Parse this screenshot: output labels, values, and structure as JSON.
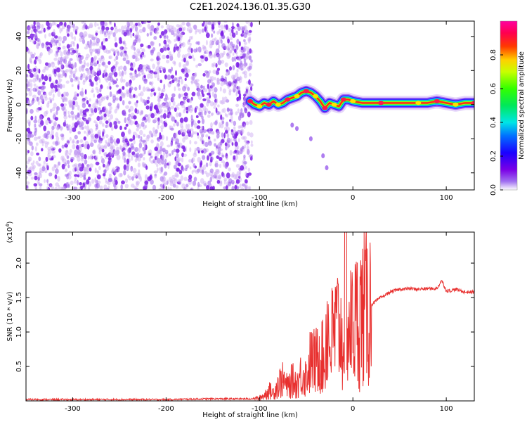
{
  "title": "C2E1.2024.136.01.35.G30",
  "colors": {
    "snr_line": "#e8302f",
    "scatter_ring": "#7d1ee6",
    "scatter_light": "#c9a6f2"
  },
  "chart_data": [
    {
      "type": "heatmap",
      "xlabel": "Height of straight line (km)",
      "ylabel": "Frequency (Hz)",
      "xlim": [
        -350,
        130
      ],
      "ylim": [
        -50,
        49
      ],
      "xticks": [
        -300,
        -200,
        -100,
        0,
        100
      ],
      "yticks": [
        -40,
        -20,
        0,
        20,
        40
      ],
      "grid": false,
      "colorbar": {
        "label": "Normalized spectral amplitude",
        "range": [
          0,
          1
        ],
        "ticks": [
          "0.0",
          "0.2",
          "0.4",
          "0.6",
          "0.8"
        ],
        "colormap": "rainbow (purple → blue → cyan → green → yellow → red → magenta)"
      },
      "noise_region": {
        "x_range": [
          -350,
          -108
        ],
        "freq_range": [
          -50,
          49
        ],
        "amplitude": 0.05
      },
      "signal_trace": {
        "description": "Strong narrow-band carrier trace near 0 Hz",
        "points": [
          [
            -110,
            2
          ],
          [
            -105,
            0
          ],
          [
            -100,
            -1
          ],
          [
            -95,
            1
          ],
          [
            -90,
            0
          ],
          [
            -85,
            2
          ],
          [
            -80,
            0
          ],
          [
            -75,
            1
          ],
          [
            -70,
            3
          ],
          [
            -65,
            4
          ],
          [
            -60,
            5
          ],
          [
            -55,
            7
          ],
          [
            -50,
            8
          ],
          [
            -45,
            7
          ],
          [
            -40,
            5
          ],
          [
            -35,
            2
          ],
          [
            -30,
            -2
          ],
          [
            -25,
            1
          ],
          [
            -20,
            0
          ],
          [
            -15,
            -1
          ],
          [
            -10,
            3
          ],
          [
            -5,
            3
          ],
          [
            0,
            2
          ],
          [
            10,
            1
          ],
          [
            30,
            1
          ],
          [
            50,
            1
          ],
          [
            70,
            1
          ],
          [
            80,
            1
          ],
          [
            90,
            2
          ],
          [
            100,
            1
          ],
          [
            110,
            0
          ],
          [
            120,
            1
          ],
          [
            130,
            1
          ]
        ]
      },
      "secondary_trace": {
        "description": "Faint diagonal echo descending below the carrier",
        "points": [
          [
            -65,
            -12
          ],
          [
            -60,
            -14
          ],
          [
            -45,
            -20
          ],
          [
            -32,
            -30
          ],
          [
            -28,
            -37
          ]
        ]
      }
    },
    {
      "type": "line",
      "xlabel": "Height of straight line (km)",
      "ylabel": "SNR (10 * v/v)",
      "y_multiplier": "(x10",
      "y_multiplier_exp": "4",
      "y_multiplier_close": ")",
      "xlim": [
        -350,
        130
      ],
      "ylim": [
        0,
        2.45
      ],
      "xticks": [
        -300,
        -200,
        -100,
        0,
        100
      ],
      "yticks": [
        "0.5",
        "1.0",
        "1.5",
        "2.0"
      ],
      "grid": false,
      "series": [
        {
          "color": "#e8302f",
          "x": [
            -350,
            -300,
            -250,
            -200,
            -150,
            -110,
            -100,
            -95,
            -90,
            -85,
            -80,
            -75,
            -70,
            -65,
            -60,
            -55,
            -50,
            -45,
            -40,
            -35,
            -30,
            -28,
            -25,
            -20,
            -15,
            -10,
            -8,
            -5,
            0,
            5,
            10,
            15,
            20,
            25,
            30,
            40,
            50,
            60,
            70,
            80,
            90,
            95,
            100,
            105,
            110,
            120,
            130
          ],
          "y": [
            0.02,
            0.02,
            0.02,
            0.02,
            0.03,
            0.03,
            0.04,
            0.08,
            0.15,
            0.12,
            0.25,
            0.3,
            0.2,
            0.3,
            0.25,
            0.4,
            0.35,
            0.6,
            0.55,
            0.75,
            0.5,
            1.2,
            0.8,
            1.0,
            1.1,
            0.8,
            2.45,
            1.0,
            1.1,
            1.2,
            1.3,
            1.35,
            1.4,
            1.45,
            1.5,
            1.58,
            1.62,
            1.63,
            1.62,
            1.63,
            1.63,
            1.75,
            1.6,
            1.6,
            1.62,
            1.58,
            1.58
          ]
        }
      ]
    }
  ]
}
